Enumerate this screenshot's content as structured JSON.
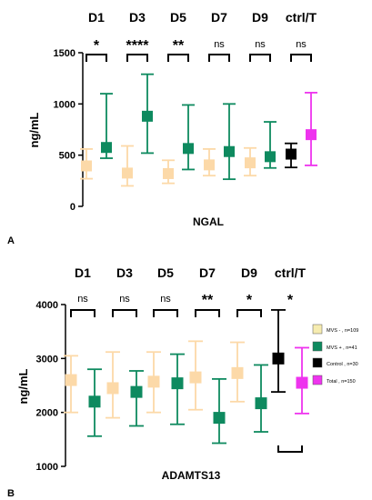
{
  "chart_data": [
    {
      "panel": "A",
      "type": "scatter",
      "xlabel": "NGAL",
      "ylabel": "ng/mL",
      "ylim": [
        0,
        1500
      ],
      "yticks": [
        0,
        500,
        1000,
        1500
      ],
      "grid": false,
      "groups": [
        {
          "label": "D1",
          "sig": "*",
          "pair": true
        },
        {
          "label": "D3",
          "sig": "****",
          "pair": true
        },
        {
          "label": "D5",
          "sig": "**",
          "pair": true
        },
        {
          "label": "D7",
          "sig": "ns",
          "pair": true
        },
        {
          "label": "D9",
          "sig": "ns",
          "pair": true
        },
        {
          "label": "ctrl/T",
          "sig": "ns",
          "pair": true
        }
      ],
      "points": [
        {
          "group": 0,
          "series": "MVS -",
          "mean": 395,
          "low": 270,
          "high": 560
        },
        {
          "group": 0,
          "series": "MVS +",
          "mean": 575,
          "low": 470,
          "high": 1100
        },
        {
          "group": 1,
          "series": "MVS -",
          "mean": 325,
          "low": 200,
          "high": 590
        },
        {
          "group": 1,
          "series": "MVS +",
          "mean": 880,
          "low": 520,
          "high": 1290
        },
        {
          "group": 2,
          "series": "MVS -",
          "mean": 320,
          "low": 225,
          "high": 450
        },
        {
          "group": 2,
          "series": "MVS +",
          "mean": 565,
          "low": 360,
          "high": 990
        },
        {
          "group": 3,
          "series": "MVS -",
          "mean": 405,
          "low": 300,
          "high": 560
        },
        {
          "group": 3,
          "series": "MVS +",
          "mean": 535,
          "low": 265,
          "high": 1000
        },
        {
          "group": 4,
          "series": "MVS -",
          "mean": 425,
          "low": 300,
          "high": 570
        },
        {
          "group": 4,
          "series": "MVS +",
          "mean": 485,
          "low": 375,
          "high": 825
        },
        {
          "group": 5,
          "series": "Control",
          "mean": 510,
          "low": 380,
          "high": 615
        },
        {
          "group": 5,
          "series": "Total",
          "mean": 700,
          "low": 400,
          "high": 1110
        }
      ]
    },
    {
      "panel": "B",
      "type": "scatter",
      "xlabel": "ADAMTS13",
      "ylabel": "ng/mL",
      "ylim": [
        1000,
        4000
      ],
      "yticks": [
        1000,
        2000,
        3000,
        4000
      ],
      "grid": false,
      "groups": [
        {
          "label": "D1",
          "sig": "ns",
          "pair": true
        },
        {
          "label": "D3",
          "sig": "ns",
          "pair": true
        },
        {
          "label": "D5",
          "sig": "ns",
          "pair": true
        },
        {
          "label": "D7",
          "sig": "**",
          "pair": true
        },
        {
          "label": "D9",
          "sig": "*",
          "pair": true
        },
        {
          "label": "ctrl/T",
          "sig": "*",
          "pair": false
        }
      ],
      "points": [
        {
          "group": 0,
          "series": "MVS -",
          "mean": 2600,
          "low": 2000,
          "high": 3050
        },
        {
          "group": 0,
          "series": "MVS +",
          "mean": 2200,
          "low": 1560,
          "high": 2800
        },
        {
          "group": 1,
          "series": "MVS -",
          "mean": 2450,
          "low": 1900,
          "high": 3120
        },
        {
          "group": 1,
          "series": "MVS +",
          "mean": 2380,
          "low": 1750,
          "high": 2770
        },
        {
          "group": 2,
          "series": "MVS -",
          "mean": 2570,
          "low": 2000,
          "high": 3120
        },
        {
          "group": 2,
          "series": "MVS +",
          "mean": 2540,
          "low": 1780,
          "high": 3080
        },
        {
          "group": 3,
          "series": "MVS -",
          "mean": 2650,
          "low": 2050,
          "high": 3320
        },
        {
          "group": 3,
          "series": "MVS +",
          "mean": 1900,
          "low": 1430,
          "high": 2620
        },
        {
          "group": 4,
          "series": "MVS -",
          "mean": 2730,
          "low": 2200,
          "high": 3300
        },
        {
          "group": 4,
          "series": "MVS +",
          "mean": 2170,
          "low": 1640,
          "high": 2880
        },
        {
          "group": 5,
          "series": "Control",
          "mean": 3000,
          "low": 2380,
          "high": 3900
        },
        {
          "group": 5,
          "series": "Total",
          "mean": 2550,
          "low": 1980,
          "high": 3200
        }
      ]
    }
  ],
  "series_colors": {
    "MVS -": "#fcd9a8",
    "MVS +": "#0e8a5f",
    "Control": "#000000",
    "Total": "#ee33ee"
  },
  "legend": {
    "placement": "right",
    "swatch_colors": [
      "#f6ecb0",
      "#0e8a5f",
      "#000000",
      "#ee33ee"
    ],
    "items": [
      "MVS - , n=109",
      "MVS + , n=41",
      "Control , n=30",
      "Total , n=150"
    ]
  }
}
